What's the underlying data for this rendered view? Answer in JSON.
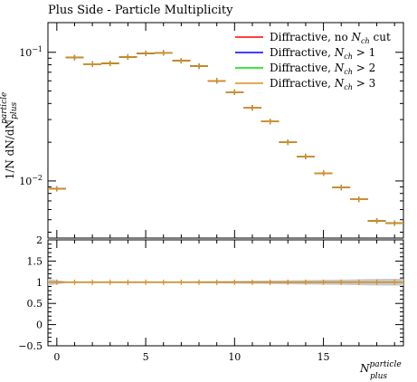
{
  "title": "Plus Side - Particle Multiplicity",
  "chart_data": [
    {
      "type": "scatter",
      "panel": "main",
      "ylabel": "1/N dN/dN_plus^particle",
      "ylabel_main": "1/N dN/dN",
      "ylabel_sup": "particle",
      "ylabel_sub": "plus",
      "yscale": "log",
      "ylim": [
        0.0036,
        0.17
      ],
      "xlim": [
        -0.5,
        19.5
      ],
      "yticks": [
        {
          "value": 0.01,
          "mantissa": "10",
          "exp": "−2"
        },
        {
          "value": 0.1,
          "mantissa": "10",
          "exp": "−1"
        }
      ],
      "grid": false,
      "legend_position": "top-right",
      "series": [
        {
          "name": "Diffractive, no N_ch cut",
          "label_main": "Diffractive, no ",
          "label_var": "N",
          "label_sub": "ch",
          "label_tail": " cut",
          "color": "#ff0000",
          "x": [
            0,
            1,
            2,
            3,
            4,
            5,
            6,
            7,
            8,
            9,
            10,
            11,
            12,
            13,
            14,
            15,
            16,
            17,
            18,
            19
          ],
          "values": [
            0.0087,
            0.091,
            0.081,
            0.082,
            0.092,
            0.098,
            0.099,
            0.086,
            0.078,
            0.06,
            0.049,
            0.037,
            0.029,
            0.02,
            0.0155,
            0.0115,
            0.0089,
            0.0072,
            0.0049,
            0.0047
          ]
        },
        {
          "name": "Diffractive, N_ch > 1",
          "label_main": "Diffractive, ",
          "label_var": "N",
          "label_sub": "ch",
          "label_tail": " > 1",
          "color": "#0000ff",
          "x": [
            0,
            1,
            2,
            3,
            4,
            5,
            6,
            7,
            8,
            9,
            10,
            11,
            12,
            13,
            14,
            15,
            16,
            17,
            18,
            19
          ],
          "values": [
            0.0087,
            0.091,
            0.081,
            0.082,
            0.092,
            0.098,
            0.099,
            0.086,
            0.078,
            0.06,
            0.049,
            0.037,
            0.029,
            0.02,
            0.0155,
            0.0115,
            0.0089,
            0.0072,
            0.0049,
            0.0047
          ]
        },
        {
          "name": "Diffractive, N_ch > 2",
          "label_main": "Diffractive, ",
          "label_var": "N",
          "label_sub": "ch",
          "label_tail": " > 2",
          "color": "#00dd00",
          "x": [
            0,
            1,
            2,
            3,
            4,
            5,
            6,
            7,
            8,
            9,
            10,
            11,
            12,
            13,
            14,
            15,
            16,
            17,
            18,
            19
          ],
          "values": [
            0.0087,
            0.091,
            0.081,
            0.082,
            0.092,
            0.098,
            0.099,
            0.086,
            0.078,
            0.06,
            0.049,
            0.037,
            0.029,
            0.02,
            0.0155,
            0.0115,
            0.0089,
            0.0072,
            0.0049,
            0.0047
          ]
        },
        {
          "name": "Diffractive, N_ch > 3",
          "label_main": "Diffractive, ",
          "label_var": "N",
          "label_sub": "ch",
          "label_tail": " > 3",
          "color": "#e08a1e",
          "x": [
            0,
            1,
            2,
            3,
            4,
            5,
            6,
            7,
            8,
            9,
            10,
            11,
            12,
            13,
            14,
            15,
            16,
            17,
            18,
            19
          ],
          "values": [
            0.0087,
            0.091,
            0.081,
            0.082,
            0.092,
            0.098,
            0.099,
            0.086,
            0.078,
            0.06,
            0.049,
            0.037,
            0.029,
            0.02,
            0.0155,
            0.0115,
            0.0089,
            0.0072,
            0.0049,
            0.0047
          ]
        }
      ]
    },
    {
      "type": "line",
      "panel": "ratio",
      "xlabel": "N_plus^particle",
      "xlabel_main": "N",
      "xlabel_sup": "particle",
      "xlabel_sub": "plus",
      "ylim": [
        -0.5,
        2
      ],
      "xlim": [
        -0.5,
        19.5
      ],
      "yticks": [
        {
          "value": -0.5,
          "label": "−0.5"
        },
        {
          "value": 0,
          "label": "0"
        },
        {
          "value": 0.5,
          "label": "0.5"
        },
        {
          "value": 1,
          "label": "1"
        },
        {
          "value": 1.5,
          "label": "1.5"
        },
        {
          "value": 2,
          "label": "2"
        }
      ],
      "xticks": [
        {
          "value": 0,
          "label": "0"
        },
        {
          "value": 5,
          "label": "5"
        },
        {
          "value": 10,
          "label": "10"
        },
        {
          "value": 15,
          "label": "15"
        }
      ],
      "band_color": "#c8c8c8",
      "band_x": [
        -0.5,
        0.5,
        1.5,
        2.5,
        3.5,
        4.5,
        5.5,
        6.5,
        7.5,
        8.5,
        9.5,
        10.5,
        11.5,
        12.5,
        13.5,
        14.5,
        15.5,
        16.5,
        17.5,
        18.5,
        19.5
      ],
      "band_half_width": [
        0.08,
        0.02,
        0.02,
        0.02,
        0.02,
        0.02,
        0.02,
        0.02,
        0.02,
        0.025,
        0.03,
        0.035,
        0.04,
        0.045,
        0.05,
        0.055,
        0.06,
        0.065,
        0.075,
        0.08,
        0.08
      ],
      "ratio_value": 1,
      "marker_color": "#e08a1e"
    }
  ]
}
